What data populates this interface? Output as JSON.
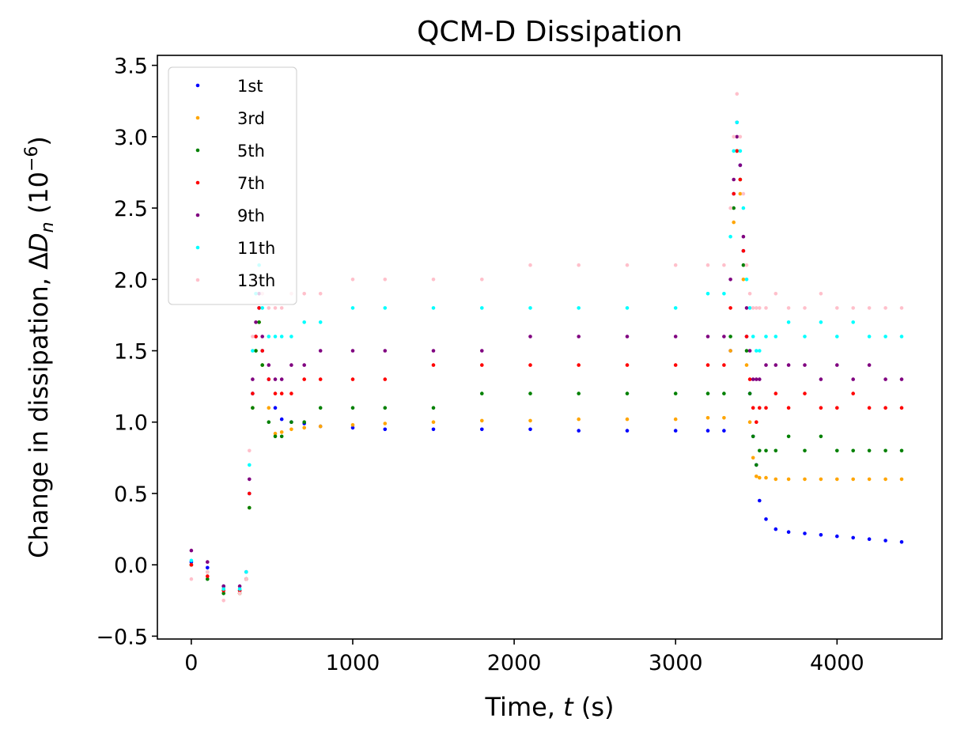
{
  "chart_data": {
    "type": "scatter",
    "title": "QCM-D Dissipation",
    "xlabel": {
      "prefix": "Time, ",
      "var": "t",
      "suffix": " (s)"
    },
    "ylabel": {
      "prefix": "Change in dissipation, Δ",
      "var": "D",
      "sub": "n",
      "unit_open": " (10",
      "unit_sup": "−6",
      "unit_close": ")"
    },
    "xlim": [
      -210,
      4650
    ],
    "ylim": [
      -0.52,
      3.57
    ],
    "xticks": [
      0,
      1000,
      2000,
      3000,
      4000
    ],
    "xtick_labels": [
      "0",
      "1000",
      "2000",
      "3000",
      "4000"
    ],
    "yticks": [
      -0.5,
      0.0,
      0.5,
      1.0,
      1.5,
      2.0,
      2.5,
      3.0,
      3.5
    ],
    "ytick_labels": [
      "−0.5",
      "0.0",
      "0.5",
      "1.0",
      "1.5",
      "2.0",
      "2.5",
      "3.0",
      "3.5"
    ],
    "grid": false,
    "legend_position": "top-left",
    "series": [
      {
        "name": "1st",
        "color": "#0000ff",
        "x": [
          0,
          100,
          200,
          300,
          340,
          360,
          380,
          400,
          420,
          440,
          480,
          520,
          560,
          620,
          700,
          800,
          1000,
          1200,
          1500,
          1800,
          2100,
          2400,
          2700,
          3000,
          3200,
          3300,
          3340,
          3360,
          3380,
          3400,
          3420,
          3440,
          3460,
          3480,
          3500,
          3520,
          3560,
          3620,
          3700,
          3800,
          3900,
          4000,
          4100,
          4200,
          4300,
          4400
        ],
        "y": [
          0.02,
          -0.02,
          -0.15,
          -0.18,
          -0.1,
          0.5,
          1.2,
          1.6,
          1.8,
          1.5,
          1.3,
          1.1,
          1.02,
          1.0,
          0.99,
          0.97,
          0.96,
          0.95,
          0.95,
          0.95,
          0.95,
          0.94,
          0.94,
          0.94,
          0.94,
          0.94,
          1.5,
          2.6,
          3.1,
          2.8,
          2.2,
          1.6,
          1.2,
          0.9,
          0.7,
          0.45,
          0.32,
          0.25,
          0.23,
          0.22,
          0.21,
          0.2,
          0.19,
          0.18,
          0.17,
          0.16
        ]
      },
      {
        "name": "3rd",
        "color": "#ffa500",
        "x": [
          0,
          100,
          200,
          300,
          340,
          360,
          380,
          400,
          420,
          440,
          480,
          520,
          560,
          620,
          700,
          800,
          1000,
          1200,
          1500,
          1800,
          2100,
          2400,
          2700,
          3000,
          3200,
          3300,
          3340,
          3360,
          3380,
          3400,
          3420,
          3440,
          3460,
          3480,
          3500,
          3520,
          3560,
          3620,
          3700,
          3800,
          3900,
          4000,
          4100,
          4200,
          4300,
          4400
        ],
        "y": [
          0.0,
          -0.05,
          -0.17,
          -0.2,
          -0.1,
          0.4,
          1.1,
          1.5,
          1.7,
          1.4,
          1.1,
          0.92,
          0.93,
          0.95,
          0.96,
          0.97,
          0.98,
          0.99,
          1.0,
          1.01,
          1.01,
          1.02,
          1.02,
          1.02,
          1.03,
          1.03,
          1.5,
          2.4,
          2.9,
          2.6,
          2.0,
          1.4,
          1.0,
          0.75,
          0.62,
          0.61,
          0.61,
          0.6,
          0.6,
          0.6,
          0.6,
          0.6,
          0.6,
          0.6,
          0.6,
          0.6
        ]
      },
      {
        "name": "5th",
        "color": "#008000",
        "x": [
          0,
          100,
          200,
          300,
          340,
          360,
          380,
          400,
          420,
          440,
          480,
          520,
          560,
          620,
          700,
          800,
          1000,
          1200,
          1500,
          1800,
          2100,
          2400,
          2700,
          3000,
          3200,
          3300,
          3340,
          3360,
          3380,
          3400,
          3420,
          3440,
          3460,
          3480,
          3500,
          3520,
          3560,
          3620,
          3700,
          3800,
          3900,
          4000,
          4100,
          4200,
          4300,
          4400
        ],
        "y": [
          0.0,
          -0.1,
          -0.2,
          -0.2,
          -0.1,
          0.4,
          1.1,
          1.5,
          1.7,
          1.4,
          1.0,
          0.9,
          0.9,
          1.0,
          1.0,
          1.1,
          1.1,
          1.1,
          1.1,
          1.2,
          1.2,
          1.2,
          1.2,
          1.2,
          1.2,
          1.2,
          1.6,
          2.5,
          2.9,
          2.7,
          2.1,
          1.5,
          1.2,
          0.9,
          0.7,
          0.8,
          0.8,
          0.8,
          0.9,
          0.8,
          0.9,
          0.8,
          0.8,
          0.8,
          0.8,
          0.8
        ]
      },
      {
        "name": "7th",
        "color": "#ff0000",
        "x": [
          0,
          100,
          200,
          300,
          340,
          360,
          380,
          400,
          420,
          440,
          480,
          520,
          560,
          620,
          700,
          800,
          1000,
          1200,
          1500,
          1800,
          2100,
          2400,
          2700,
          3000,
          3200,
          3300,
          3340,
          3360,
          3380,
          3400,
          3420,
          3440,
          3460,
          3480,
          3500,
          3520,
          3560,
          3620,
          3700,
          3800,
          3900,
          4000,
          4100,
          4200,
          4300,
          4400
        ],
        "y": [
          0.0,
          -0.08,
          -0.18,
          -0.18,
          -0.1,
          0.5,
          1.2,
          1.6,
          1.8,
          1.5,
          1.3,
          1.2,
          1.2,
          1.2,
          1.3,
          1.3,
          1.3,
          1.3,
          1.4,
          1.4,
          1.4,
          1.4,
          1.4,
          1.4,
          1.4,
          1.4,
          1.8,
          2.6,
          2.9,
          2.7,
          2.2,
          1.6,
          1.3,
          1.1,
          1.0,
          1.1,
          1.1,
          1.2,
          1.1,
          1.2,
          1.1,
          1.1,
          1.2,
          1.1,
          1.1,
          1.1
        ]
      },
      {
        "name": "9th",
        "color": "#800080",
        "x": [
          0,
          100,
          200,
          300,
          340,
          360,
          380,
          400,
          420,
          440,
          480,
          520,
          560,
          620,
          700,
          800,
          1000,
          1200,
          1500,
          1800,
          2100,
          2400,
          2700,
          3000,
          3200,
          3300,
          3340,
          3360,
          3380,
          3400,
          3420,
          3440,
          3460,
          3480,
          3500,
          3520,
          3560,
          3620,
          3700,
          3800,
          3900,
          4000,
          4100,
          4200,
          4300,
          4400
        ],
        "y": [
          0.1,
          0.02,
          -0.15,
          -0.15,
          -0.05,
          0.6,
          1.3,
          1.7,
          1.9,
          1.6,
          1.4,
          1.3,
          1.3,
          1.4,
          1.4,
          1.5,
          1.5,
          1.5,
          1.5,
          1.5,
          1.6,
          1.6,
          1.6,
          1.6,
          1.6,
          1.6,
          2.0,
          2.7,
          3.0,
          2.8,
          2.3,
          1.8,
          1.5,
          1.3,
          1.3,
          1.3,
          1.4,
          1.4,
          1.4,
          1.4,
          1.3,
          1.4,
          1.3,
          1.4,
          1.3,
          1.3
        ]
      },
      {
        "name": "11th",
        "color": "#00ffff",
        "x": [
          0,
          100,
          200,
          300,
          340,
          360,
          380,
          400,
          420,
          440,
          480,
          520,
          560,
          620,
          700,
          800,
          1000,
          1200,
          1500,
          1800,
          2100,
          2400,
          2700,
          3000,
          3200,
          3300,
          3340,
          3360,
          3380,
          3400,
          3420,
          3440,
          3460,
          3480,
          3500,
          3520,
          3560,
          3620,
          3700,
          3800,
          3900,
          4000,
          4100,
          4200,
          4300,
          4400
        ],
        "y": [
          0.03,
          -0.05,
          -0.17,
          -0.17,
          -0.05,
          0.7,
          1.5,
          1.9,
          2.1,
          1.8,
          1.6,
          1.6,
          1.6,
          1.6,
          1.7,
          1.7,
          1.8,
          1.8,
          1.8,
          1.8,
          1.8,
          1.8,
          1.8,
          1.8,
          1.9,
          1.9,
          2.3,
          2.9,
          3.1,
          2.9,
          2.5,
          2.0,
          1.8,
          1.6,
          1.5,
          1.5,
          1.6,
          1.6,
          1.7,
          1.6,
          1.7,
          1.6,
          1.7,
          1.6,
          1.6,
          1.6
        ]
      },
      {
        "name": "13th",
        "color": "#ffc0cb",
        "x": [
          0,
          100,
          200,
          300,
          340,
          360,
          380,
          400,
          420,
          440,
          480,
          520,
          560,
          620,
          700,
          800,
          1000,
          1200,
          1500,
          1800,
          2100,
          2400,
          2700,
          3000,
          3200,
          3300,
          3340,
          3360,
          3380,
          3400,
          3420,
          3440,
          3460,
          3480,
          3500,
          3520,
          3560,
          3620,
          3700,
          3800,
          3900,
          4000,
          4100,
          4200,
          4300,
          4400
        ],
        "y": [
          -0.1,
          -0.05,
          -0.25,
          -0.2,
          -0.1,
          0.8,
          1.6,
          2.0,
          2.2,
          1.9,
          1.8,
          1.8,
          1.8,
          1.9,
          1.9,
          1.9,
          2.0,
          2.0,
          2.0,
          2.0,
          2.1,
          2.1,
          2.1,
          2.1,
          2.1,
          2.1,
          2.5,
          3.0,
          3.3,
          3.0,
          2.6,
          2.1,
          1.9,
          1.8,
          1.8,
          1.8,
          1.8,
          1.9,
          1.8,
          1.8,
          1.9,
          1.8,
          1.8,
          1.8,
          1.8,
          1.8
        ]
      }
    ]
  }
}
